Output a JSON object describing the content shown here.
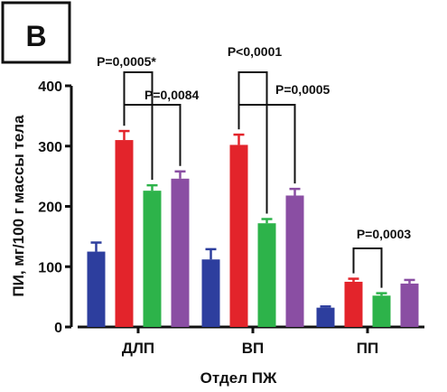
{
  "panel_label": "B",
  "chart_data": {
    "type": "bar",
    "categories": [
      "ДЛП",
      "ВП",
      "ПП"
    ],
    "series": [
      {
        "color": "#2d3e9e",
        "values": [
          125,
          112,
          32
        ],
        "errors": [
          15,
          17,
          2
        ]
      },
      {
        "color": "#e3242b",
        "values": [
          310,
          302,
          75
        ],
        "errors": [
          15,
          17,
          5
        ]
      },
      {
        "color": "#2db34a",
        "values": [
          226,
          172,
          52
        ],
        "errors": [
          9,
          7,
          4
        ]
      },
      {
        "color": "#8a4ea3",
        "values": [
          246,
          218,
          72
        ],
        "errors": [
          12,
          11,
          6
        ]
      }
    ],
    "xlabel": "Отдел ПЖ",
    "ylabel": "ПИ, мг/100 г массы тела",
    "ylim": [
      0,
      400
    ],
    "yticks": [
      0,
      100,
      200,
      300,
      400
    ],
    "grid": false,
    "annotations": [
      {
        "text": "P=0,0005*",
        "category": 0,
        "from_series": 1,
        "to_series": 2
      },
      {
        "text": "P=0,0084",
        "category": 0,
        "from_series": 1,
        "to_series": 3
      },
      {
        "text": "P<0,0001",
        "category": 1,
        "from_series": 1,
        "to_series": 2
      },
      {
        "text": "P=0,0005",
        "category": 1,
        "from_series": 1,
        "to_series": 3
      },
      {
        "text": "P=0,0003",
        "category": 2,
        "from_series": 1,
        "to_series": 2
      }
    ]
  }
}
